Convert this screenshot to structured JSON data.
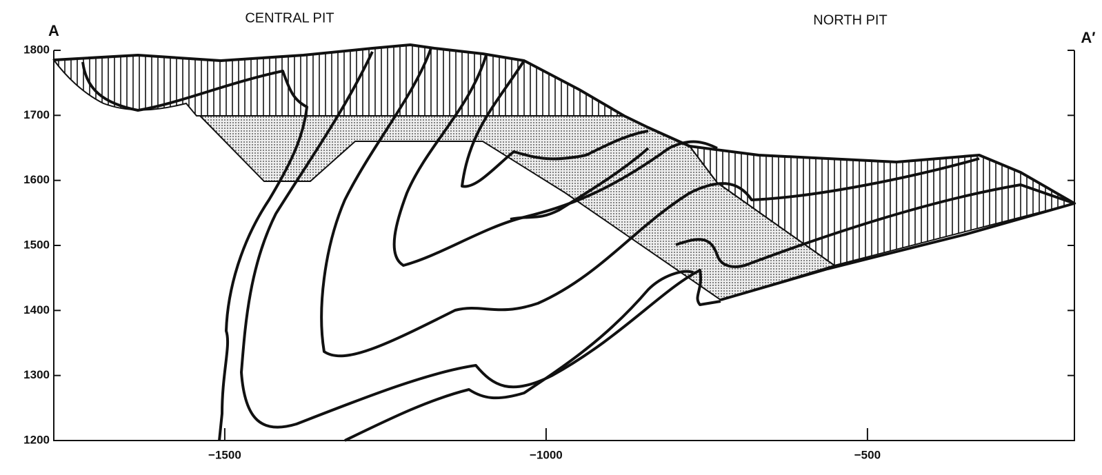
{
  "labels": {
    "left_end": "A",
    "right_end": "A′",
    "central_pit": "CENTRAL PIT",
    "north_pit": "NORTH PIT"
  },
  "axes": {
    "xlim": [
      -1766,
      -178
    ],
    "xticks": [
      {
        "value": -1500,
        "label": "−1500"
      },
      {
        "value": -1000,
        "label": "−1000"
      },
      {
        "value": -500,
        "label": "−500"
      }
    ],
    "ylim": [
      1200,
      1800
    ],
    "yticks": [
      1200,
      1300,
      1400,
      1500,
      1600,
      1700,
      1800
    ]
  }
}
